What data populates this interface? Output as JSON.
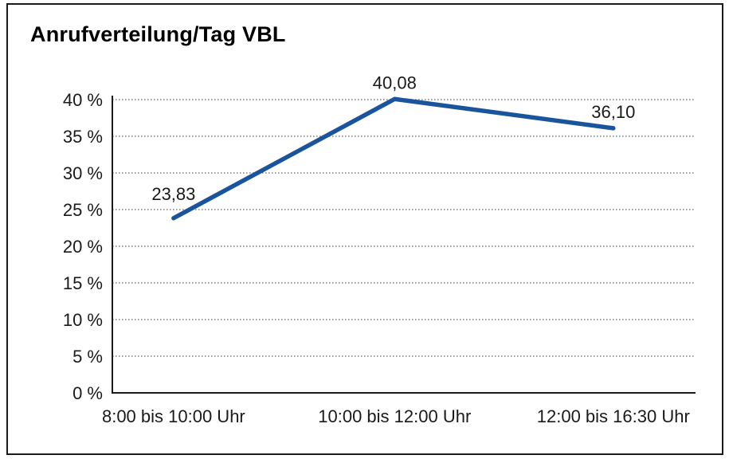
{
  "chart_data": {
    "type": "line",
    "title": "Anrufverteilung/Tag VBL",
    "categories": [
      "8:00 bis 10:00 Uhr",
      "10:00 bis 12:00 Uhr",
      "12:00 bis 16:30 Uhr"
    ],
    "values": [
      23.83,
      40.08,
      36.1
    ],
    "point_labels": [
      "23,83",
      "40,08",
      "36,10"
    ],
    "ylim": [
      0,
      40
    ],
    "ytick_step": 5,
    "ytick_labels": [
      "0 %",
      "5 %",
      "10 %",
      "15 %",
      "20 %",
      "25 %",
      "30 %",
      "35 %",
      "40 %"
    ],
    "xlabel": "",
    "ylabel": "",
    "grid": "horizontal-dotted",
    "legend": "none",
    "colors": {
      "line": "#1A549D",
      "axis": "#1a1a1a",
      "grid": "#6e6e6e",
      "text": "#1a1a1a",
      "background": "#ffffff",
      "frame_border": "#1a1a1a"
    }
  }
}
